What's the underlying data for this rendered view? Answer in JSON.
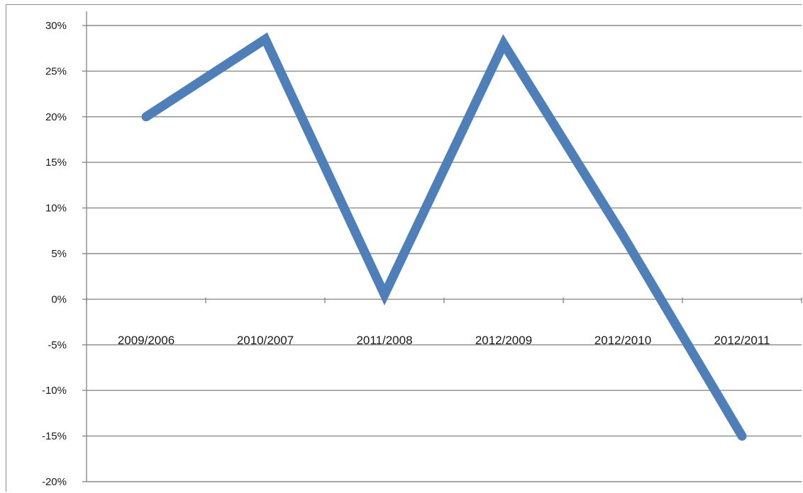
{
  "chart_data": {
    "type": "line",
    "categories": [
      "2009/2006",
      "2010/2007",
      "2011/2008",
      "2012/2009",
      "2012/2010",
      "2012/2011"
    ],
    "series": [
      {
        "values": [
          20,
          28.5,
          0.5,
          28,
          7,
          -15
        ]
      }
    ],
    "x_positions": [
      0.5,
      1.5,
      2.5,
      3.5,
      4.5,
      5.5
    ],
    "note_x_positions": "category index positions along the x axis, in category units (0..6)",
    "ylim": [
      -20,
      30
    ],
    "yticks": [
      30,
      25,
      20,
      15,
      10,
      5,
      0,
      -5,
      -10,
      -15,
      -20
    ],
    "ytick_labels": [
      "30%",
      "25%",
      "20%",
      "15%",
      "10%",
      "5%",
      "0%",
      "-5%",
      "-10%",
      "-15%",
      "-20%"
    ],
    "grid": true,
    "line_color": "#4f7fb8"
  }
}
